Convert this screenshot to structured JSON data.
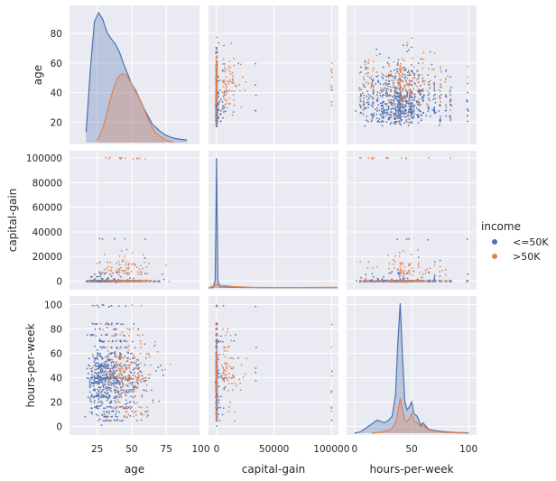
{
  "chart_data": {
    "type": "scatter",
    "kind": "pairplot",
    "variables": [
      "age",
      "capital-gain",
      "hours-per-week"
    ],
    "hue": "income",
    "legend": {
      "title": "income",
      "placement": "right",
      "entries": [
        {
          "label": "<=50K",
          "color": "#4c72b0"
        },
        {
          "label": ">50K",
          "color": "#dd8452"
        }
      ]
    },
    "axes": {
      "age": {
        "label": "age",
        "range": [
          5,
          99
        ],
        "ticks_x": [
          25,
          50,
          75,
          100
        ],
        "ticks_y": [
          20,
          40,
          60,
          80
        ]
      },
      "capital-gain": {
        "label": "capital-gain",
        "range": [
          -7000,
          106000
        ],
        "ticks_x": [
          0,
          50000,
          100000
        ],
        "ticks_y": [
          0,
          20000,
          40000,
          60000,
          80000,
          100000
        ]
      },
      "hours-per-week": {
        "label": "hours-per-week",
        "range": [
          -7,
          107
        ],
        "ticks_x": [
          0,
          50,
          100
        ],
        "ticks_y": [
          0,
          20,
          40,
          60,
          80,
          100
        ]
      }
    },
    "diagonal_kde": {
      "age": {
        "<=50K": [
          [
            17,
            0.08
          ],
          [
            20,
            0.55
          ],
          [
            23,
            0.93
          ],
          [
            26,
            1.0
          ],
          [
            29,
            0.95
          ],
          [
            32,
            0.85
          ],
          [
            35,
            0.8
          ],
          [
            38,
            0.76
          ],
          [
            41,
            0.7
          ],
          [
            44,
            0.61
          ],
          [
            47,
            0.53
          ],
          [
            50,
            0.45
          ],
          [
            53,
            0.4
          ],
          [
            56,
            0.33
          ],
          [
            59,
            0.26
          ],
          [
            62,
            0.2
          ],
          [
            65,
            0.14
          ],
          [
            70,
            0.09
          ],
          [
            75,
            0.055
          ],
          [
            80,
            0.035
          ],
          [
            85,
            0.025
          ],
          [
            90,
            0.02
          ]
        ],
        ">50K": [
          [
            25,
            0.02
          ],
          [
            28,
            0.08
          ],
          [
            31,
            0.18
          ],
          [
            34,
            0.31
          ],
          [
            37,
            0.42
          ],
          [
            40,
            0.5
          ],
          [
            43,
            0.53
          ],
          [
            46,
            0.52
          ],
          [
            49,
            0.47
          ],
          [
            52,
            0.41
          ],
          [
            55,
            0.35
          ],
          [
            58,
            0.28
          ],
          [
            61,
            0.2
          ],
          [
            64,
            0.13
          ],
          [
            67,
            0.08
          ],
          [
            70,
            0.05
          ],
          [
            75,
            0.02
          ],
          [
            80,
            0.0
          ]
        ]
      },
      "capital-gain": {
        "<=50K": [
          [
            -8000,
            0.0
          ],
          [
            -3000,
            0.003
          ],
          [
            -1200,
            0.06
          ],
          [
            -300,
            0.7
          ],
          [
            0,
            1.0
          ],
          [
            300,
            0.7
          ],
          [
            1200,
            0.06
          ],
          [
            3000,
            0.008
          ],
          [
            15000,
            0.004
          ],
          [
            40000,
            0.002
          ],
          [
            105000,
            0.002
          ]
        ],
        ">50K": [
          [
            -8000,
            0.0
          ],
          [
            -4000,
            0.01
          ],
          [
            -1500,
            0.02
          ],
          [
            0,
            0.025
          ],
          [
            3000,
            0.02
          ],
          [
            10000,
            0.015
          ],
          [
            15000,
            0.01
          ],
          [
            30000,
            0.004
          ],
          [
            60000,
            0.002
          ],
          [
            99999,
            0.004
          ],
          [
            105000,
            0.004
          ]
        ]
      },
      "hours-per-week": {
        "<=50K": [
          [
            0,
            0.0
          ],
          [
            5,
            0.01
          ],
          [
            10,
            0.04
          ],
          [
            15,
            0.07
          ],
          [
            20,
            0.1
          ],
          [
            23,
            0.09
          ],
          [
            26,
            0.08
          ],
          [
            30,
            0.1
          ],
          [
            33,
            0.13
          ],
          [
            36,
            0.3
          ],
          [
            38,
            0.7
          ],
          [
            40,
            1.0
          ],
          [
            42,
            0.6
          ],
          [
            44,
            0.25
          ],
          [
            46,
            0.18
          ],
          [
            48,
            0.2
          ],
          [
            50,
            0.24
          ],
          [
            52,
            0.15
          ],
          [
            55,
            0.13
          ],
          [
            58,
            0.06
          ],
          [
            60,
            0.08
          ],
          [
            65,
            0.03
          ],
          [
            70,
            0.02
          ],
          [
            80,
            0.01
          ],
          [
            90,
            0.005
          ],
          [
            100,
            0.003
          ]
        ],
        ">50K": [
          [
            15,
            0.0
          ],
          [
            25,
            0.01
          ],
          [
            32,
            0.03
          ],
          [
            36,
            0.08
          ],
          [
            38,
            0.16
          ],
          [
            40,
            0.27
          ],
          [
            42,
            0.18
          ],
          [
            44,
            0.1
          ],
          [
            46,
            0.09
          ],
          [
            48,
            0.11
          ],
          [
            50,
            0.15
          ],
          [
            52,
            0.09
          ],
          [
            55,
            0.08
          ],
          [
            58,
            0.05
          ],
          [
            60,
            0.06
          ],
          [
            65,
            0.025
          ],
          [
            70,
            0.015
          ],
          [
            80,
            0.005
          ],
          [
            100,
            0.0
          ]
        ]
      }
    }
  }
}
